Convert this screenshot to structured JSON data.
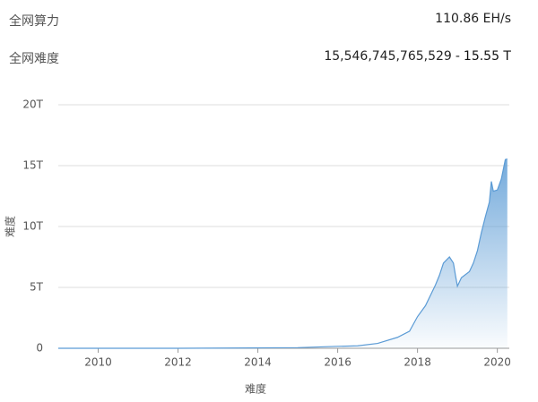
{
  "info": [
    {
      "label": "全网算力",
      "value": "110.86 EH/s"
    },
    {
      "label": "全网难度",
      "value": "15,546,745,765,529",
      "separator": "-",
      "value_short": "15.55 T"
    }
  ],
  "chart_data": {
    "type": "area",
    "ylabel": "难度",
    "xlabel": "难度",
    "x": [
      2009,
      2012,
      2015,
      2016,
      2016.5,
      2017,
      2017.5,
      2017.8,
      2018,
      2018.2,
      2018.45,
      2018.55,
      2018.65,
      2018.8,
      2018.9,
      2018.95,
      2019.0,
      2019.1,
      2019.3,
      2019.4,
      2019.5,
      2019.6,
      2019.7,
      2019.8,
      2019.85,
      2019.9,
      2020.0,
      2020.1,
      2020.2,
      2020.25
    ],
    "series": [
      {
        "color": "#5b9bd5",
        "values": [
          0,
          0,
          0.05,
          0.16,
          0.2,
          0.4,
          0.9,
          1.4,
          2.6,
          3.5,
          5.2,
          6.0,
          7.0,
          7.5,
          7.0,
          6.0,
          5.1,
          5.8,
          6.3,
          7.0,
          8.0,
          9.5,
          10.8,
          12.0,
          13.7,
          12.9,
          13.0,
          13.9,
          15.5,
          15.55
        ]
      }
    ],
    "xlim": [
      2009,
      2020.3
    ],
    "xticks": [
      2010,
      2012,
      2014,
      2016,
      2018,
      2020
    ],
    "ylim": [
      0,
      20
    ],
    "yticks": [
      0,
      {
        "value": 5,
        "label": "5T"
      },
      {
        "value": 10,
        "label": "10T"
      },
      {
        "value": 15,
        "label": "15T"
      },
      {
        "value": 20,
        "label": "20T"
      }
    ],
    "grid": true
  }
}
